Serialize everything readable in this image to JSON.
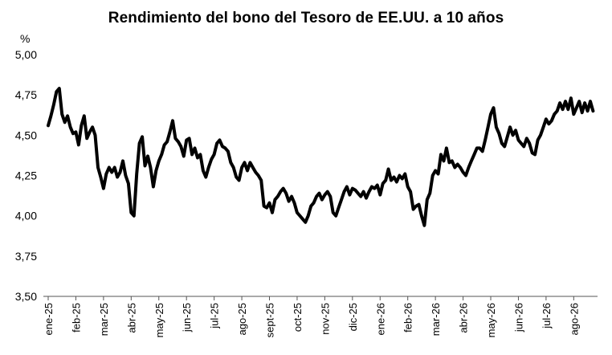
{
  "chart_data": {
    "type": "line",
    "title": "Rendimiento del bono del Tesoro de EE.UU. a 10 años",
    "ylabel": "%",
    "xlabel": "",
    "ylim": [
      3.5,
      5.0
    ],
    "y_ticks": [
      "3,50",
      "3,75",
      "4,00",
      "4,25",
      "4,50",
      "4,75",
      "5,00"
    ],
    "y_tick_values": [
      3.5,
      3.75,
      4.0,
      4.25,
      4.5,
      4.75,
      5.0
    ],
    "x_tick_labels": [
      "ene-25",
      "feb-25",
      "mar-25",
      "abr-25",
      "may-25",
      "jun-25",
      "jul-25",
      "ago-25",
      "sept-25",
      "oct-25",
      "nov-25",
      "dic-25",
      "ene-26",
      "feb-26",
      "mar-26",
      "abr-26",
      "may-26",
      "jun-26",
      "jul-26",
      "ago-26"
    ],
    "grid": false,
    "legend": "none",
    "line_color": "#000000",
    "series": [
      {
        "x": [
          0,
          0.1,
          0.2,
          0.3,
          0.4,
          0.5,
          0.6,
          0.7,
          0.8,
          0.9,
          1.0,
          1.1,
          1.2,
          1.3,
          1.4,
          1.5,
          1.6,
          1.7,
          1.8,
          1.9,
          2.0,
          2.1,
          2.2,
          2.3,
          2.4,
          2.5,
          2.6,
          2.7,
          2.8,
          2.9,
          3.0,
          3.1,
          3.2,
          3.3,
          3.4,
          3.5,
          3.6,
          3.7,
          3.8,
          3.9,
          4.0,
          4.1,
          4.2,
          4.3,
          4.4,
          4.5,
          4.6,
          4.7,
          4.8,
          4.9,
          5.0,
          5.1,
          5.2,
          5.3,
          5.4,
          5.5,
          5.6,
          5.7,
          5.8,
          5.9,
          6.0,
          6.1,
          6.2,
          6.3,
          6.4,
          6.5,
          6.6,
          6.7,
          6.8,
          6.9,
          7.0,
          7.1,
          7.2,
          7.3,
          7.4,
          7.5,
          7.6,
          7.7,
          7.8,
          7.9,
          8.0,
          8.1,
          8.2,
          8.3,
          8.4,
          8.5,
          8.6,
          8.7,
          8.8,
          8.9,
          9.0,
          9.1,
          9.2,
          9.3,
          9.4,
          9.5,
          9.6,
          9.7,
          9.8,
          9.9,
          10.0,
          10.1,
          10.2,
          10.3,
          10.4,
          10.5,
          10.6,
          10.7,
          10.8,
          10.9,
          11.0,
          11.1,
          11.2,
          11.3,
          11.4,
          11.5,
          11.6,
          11.7,
          11.8,
          11.9,
          12.0,
          12.1,
          12.2,
          12.3,
          12.4,
          12.5,
          12.6,
          12.7,
          12.8,
          12.9,
          13.0,
          13.1,
          13.2,
          13.3,
          13.4,
          13.5,
          13.6,
          13.7,
          13.8,
          13.9,
          14.0,
          14.1,
          14.2,
          14.3,
          14.4,
          14.5,
          14.6,
          14.7,
          14.8,
          14.9,
          15.0,
          15.1,
          15.2,
          15.3,
          15.4,
          15.5,
          15.6,
          15.7,
          15.8,
          15.9,
          16.0,
          16.1,
          16.2,
          16.3,
          16.4,
          16.5,
          16.6,
          16.7,
          16.8,
          16.9,
          17.0,
          17.1,
          17.2,
          17.3,
          17.4,
          17.5,
          17.6,
          17.7,
          17.8,
          17.9,
          18.0,
          18.1,
          18.2,
          18.3,
          18.4,
          18.5,
          18.6,
          18.7,
          18.8,
          18.9,
          19.0,
          19.1,
          19.2,
          19.3,
          19.4,
          19.5,
          19.6,
          19.7
        ],
        "values": [
          4.56,
          4.62,
          4.69,
          4.77,
          4.79,
          4.63,
          4.58,
          4.62,
          4.55,
          4.51,
          4.52,
          4.44,
          4.56,
          4.62,
          4.48,
          4.52,
          4.55,
          4.5,
          4.3,
          4.24,
          4.17,
          4.26,
          4.3,
          4.27,
          4.3,
          4.24,
          4.27,
          4.34,
          4.25,
          4.2,
          4.02,
          4.0,
          4.26,
          4.45,
          4.49,
          4.31,
          4.37,
          4.3,
          4.18,
          4.28,
          4.34,
          4.38,
          4.44,
          4.46,
          4.52,
          4.59,
          4.48,
          4.46,
          4.43,
          4.37,
          4.47,
          4.48,
          4.38,
          4.42,
          4.36,
          4.38,
          4.28,
          4.24,
          4.3,
          4.35,
          4.38,
          4.45,
          4.47,
          4.43,
          4.42,
          4.4,
          4.33,
          4.3,
          4.24,
          4.22,
          4.3,
          4.33,
          4.28,
          4.33,
          4.3,
          4.27,
          4.25,
          4.22,
          4.06,
          4.05,
          4.08,
          4.02,
          4.1,
          4.12,
          4.15,
          4.17,
          4.14,
          4.09,
          4.12,
          4.08,
          4.02,
          4.0,
          3.98,
          3.96,
          4.0,
          4.06,
          4.08,
          4.12,
          4.14,
          4.1,
          4.13,
          4.15,
          4.12,
          4.02,
          4.0,
          4.05,
          4.1,
          4.15,
          4.18,
          4.13,
          4.17,
          4.16,
          4.14,
          4.12,
          4.15,
          4.11,
          4.15,
          4.18,
          4.17,
          4.19,
          4.13,
          4.2,
          4.22,
          4.29,
          4.22,
          4.24,
          4.21,
          4.25,
          4.23,
          4.26,
          4.18,
          4.15,
          4.04,
          4.06,
          4.07,
          4.0,
          3.94,
          4.1,
          4.14,
          4.25,
          4.28,
          4.26,
          4.38,
          4.34,
          4.42,
          4.33,
          4.34,
          4.3,
          4.32,
          4.3,
          4.27,
          4.25,
          4.3,
          4.34,
          4.38,
          4.42,
          4.42,
          4.4,
          4.47,
          4.55,
          4.63,
          4.67,
          4.55,
          4.51,
          4.45,
          4.43,
          4.49,
          4.55,
          4.5,
          4.53,
          4.47,
          4.45,
          4.43,
          4.48,
          4.45,
          4.39,
          4.38,
          4.47,
          4.5,
          4.55,
          4.6,
          4.57,
          4.59,
          4.63,
          4.65,
          4.7,
          4.66,
          4.71,
          4.66,
          4.73,
          4.63,
          4.67,
          4.71,
          4.64,
          4.7,
          4.65,
          4.71,
          4.65
        ]
      }
    ]
  }
}
